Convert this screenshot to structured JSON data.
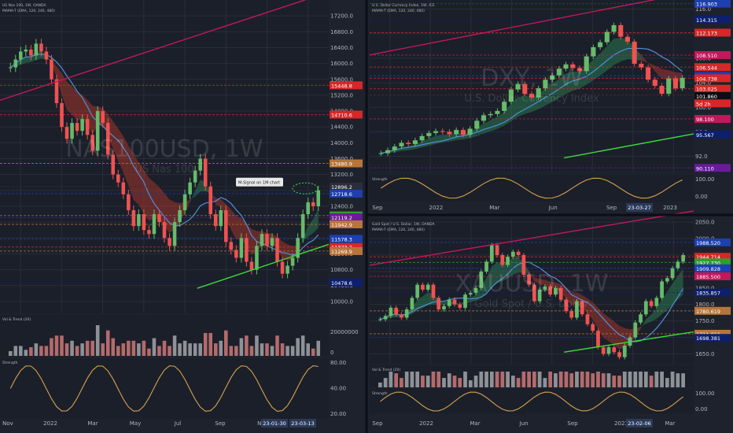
{
  "colors": {
    "background": "#1e222d",
    "candle_up": "#66bb6a",
    "candle_down": "#ef5350",
    "sma_line": "#4f8fd9",
    "ribbon_bear": "#c0392b",
    "ribbon_bull": "#2e8b57",
    "trend_red": "#c2185b",
    "trend_green": "#3ddc3d",
    "axis_text": "#b2b5be",
    "grid": "#2a2e39",
    "label_blue": "#1e3fb0",
    "label_navy": "#0d1f6e",
    "label_red": "#d62828",
    "label_pink": "#c2185b",
    "label_orange": "#b8753a",
    "label_green": "#2e9e2e",
    "label_purple": "#6a1b9a",
    "label_dark": "#0b0e14"
  },
  "chart_data": [
    {
      "id": "nas",
      "type": "candlestick",
      "info_lines": [
        "US Nas 100, 1W, OANDA",
        "MAMA-T (EMA, 120, 240, 480)"
      ],
      "watermark": "NAS100USD, 1W",
      "watermark_sub": "US Nas 100",
      "annotation": "M-Signal on 1M chart",
      "ylim": [
        9700,
        17600
      ],
      "y_ticks": [
        10000.0,
        10400.0,
        10800.0,
        11200.0,
        11600.0,
        12000.0,
        12400.0,
        12800.0,
        13200.0,
        13600.0,
        14000.0,
        14400.0,
        14800.0,
        15200.0,
        15600.0,
        16000.0,
        16400.0,
        16800.0,
        17200.0
      ],
      "x_ticks": [
        "Nov",
        "2022",
        "Mar",
        "May",
        "Jul",
        "Sep",
        "Nov",
        "2023"
      ],
      "date_boxes": [
        "23-01-30",
        "23-03-13"
      ],
      "closes": [
        15900,
        16100,
        16300,
        16350,
        16200,
        16500,
        16300,
        16100,
        15600,
        15000,
        14400,
        14100,
        14500,
        14300,
        14600,
        14200,
        13800,
        14800,
        14500,
        13700,
        13200,
        13000,
        12700,
        12300,
        11900,
        12200,
        11800,
        11700,
        12200,
        12000,
        11600,
        11400,
        12000,
        12300,
        12700,
        13000,
        13300,
        13600,
        12900,
        12200,
        11900,
        12300,
        11500,
        11300,
        11100,
        11600,
        11000,
        10800,
        11400,
        11700,
        11400,
        11600,
        11000,
        10700,
        10900,
        11100,
        11600,
        12200,
        12500,
        12400,
        12800
      ],
      "levels": [
        {
          "value": 15448.8,
          "label": "15448.8",
          "color": "#d62828"
        },
        {
          "value": 14710.6,
          "label": "14710.6",
          "color": "#d62828"
        },
        {
          "value": 13480.9,
          "label": "13480.9",
          "color": "#b8753a"
        },
        {
          "value": 12896.2,
          "label": "12896.2",
          "color": "#2a2e39"
        },
        {
          "value": 12718.6,
          "label": "12718.6",
          "color": "#1e3fb0"
        },
        {
          "value": 12169.2,
          "label": "12169.2",
          "color": "#2e9e2e"
        },
        {
          "value": 12119.2,
          "label": "12119.2",
          "color": "#6a1b9a"
        },
        {
          "value": 11942.9,
          "label": "11942.9",
          "color": "#b8753a"
        },
        {
          "value": 11578.3,
          "label": "11578.3",
          "color": "#1e3fb0"
        },
        {
          "value": 11373.2,
          "label": "11373.2",
          "color": "#d62828"
        },
        {
          "value": 11269.9,
          "label": "11269.9",
          "color": "#b8753a"
        },
        {
          "value": 10478.6,
          "label": "10478.6",
          "color": "#0d1f6e"
        }
      ],
      "volume_title": "Vol & Trend (20)",
      "volume_ticks": [
        "20000000",
        "0"
      ],
      "osc_title": "Strength",
      "osc_ticks": [
        "80.00",
        "40.00",
        "20.00"
      ]
    },
    {
      "id": "dxy",
      "type": "candlestick",
      "info_lines": [
        "U.S. Dollar Currency Index, 1W, ICE",
        "MAMA-T (EMA, 120, 240, 480)"
      ],
      "watermark": "DXY, 1W",
      "watermark_sub": "U.S. Dollar Currency Index",
      "ylim": [
        89.5,
        117.5
      ],
      "y_ticks": [
        92.0,
        96.0,
        100.0,
        104.0,
        108.0,
        112.0,
        116.0
      ],
      "x_ticks": [
        "Sep",
        "2022",
        "Mar",
        "Jun",
        "Sep",
        "2023"
      ],
      "date_boxes": [
        "23-03-27"
      ],
      "closes": [
        92.5,
        93.0,
        93.6,
        94.2,
        94.0,
        94.6,
        95.3,
        95.8,
        96.1,
        96.0,
        95.6,
        96.3,
        95.5,
        96.5,
        97.8,
        98.7,
        98.9,
        99.4,
        100.9,
        102.9,
        103.8,
        102.2,
        101.6,
        103.1,
        104.5,
        105.2,
        106.3,
        107.0,
        106.4,
        105.9,
        108.3,
        109.8,
        110.6,
        112.3,
        113.4,
        111.5,
        110.7,
        107.1,
        106.5,
        104.5,
        103.5,
        102.2,
        104.7,
        103.1,
        104.8
      ],
      "levels": [
        {
          "value": 116.903,
          "label": "116.903",
          "color": "#1e3fb0"
        },
        {
          "value": 114.315,
          "label": "114.315",
          "color": "#0d1f6e"
        },
        {
          "value": 112.173,
          "label": "112.173",
          "color": "#d62828"
        },
        {
          "value": 108.51,
          "label": "108.510",
          "color": "#c2185b"
        },
        {
          "value": 106.544,
          "label": "106.544",
          "color": "#d62828"
        },
        {
          "value": 105.13,
          "label": "105.130",
          "color": "#1e3fb0"
        },
        {
          "value": 104.738,
          "label": "104.738",
          "color": "#d62828"
        },
        {
          "value": 103.025,
          "label": "103.025",
          "color": "#d62828"
        },
        {
          "value": 101.922,
          "label": "101.922",
          "color": "#d62828"
        },
        {
          "value": 101.86,
          "label": "101.860",
          "color": "#0b0e14"
        },
        {
          "value": 98.1,
          "label": "98.100",
          "color": "#c2185b"
        },
        {
          "value": 95.567,
          "label": "95.567",
          "color": "#0d1f6e"
        },
        {
          "value": 90.11,
          "label": "90.110",
          "color": "#6a1b9a"
        }
      ],
      "countdown": "5d 2h",
      "osc_title": "Strength",
      "osc_ticks": [
        "100.00",
        "0.00"
      ]
    },
    {
      "id": "xau",
      "type": "candlestick",
      "info_lines": [
        "Gold Spot / U.S. Dollar, 1W, OANDA",
        "MAMA-T (EMA, 120, 240, 480)"
      ],
      "watermark": "XAUUSD, 1W",
      "watermark_sub": "Gold Spot / U.S. Dollar",
      "ylim": [
        1620,
        2060
      ],
      "y_ticks": [
        1650.0,
        1700.0,
        1750.0,
        1800.0,
        1850.0,
        1900.0,
        1950.0,
        2000.0,
        2050.0
      ],
      "x_ticks": [
        "Sep",
        "2022",
        "Mar",
        "Jun",
        "Sep",
        "2023",
        "Mar"
      ],
      "date_boxes": [
        "23-02-06"
      ],
      "closes": [
        1755,
        1765,
        1790,
        1770,
        1760,
        1785,
        1820,
        1860,
        1845,
        1860,
        1820,
        1785,
        1795,
        1815,
        1800,
        1790,
        1830,
        1835,
        1850,
        1900,
        1930,
        1980,
        1950,
        1920,
        1945,
        1960,
        1950,
        1890,
        1860,
        1810,
        1845,
        1855,
        1830,
        1850,
        1815,
        1780,
        1760,
        1810,
        1770,
        1740,
        1720,
        1670,
        1650,
        1670,
        1655,
        1640,
        1675,
        1700,
        1745,
        1770,
        1810,
        1795,
        1820,
        1870,
        1880,
        1910,
        1930,
        1950
      ],
      "levels": [
        {
          "value": 1988.52,
          "label": "1988.520",
          "color": "#1e3fb0"
        },
        {
          "value": 1944.714,
          "label": "1944.714",
          "color": "#d62828"
        },
        {
          "value": 1927.73,
          "label": "1927.730",
          "color": "#2e9e2e"
        },
        {
          "value": 1909.828,
          "label": "1909.828",
          "color": "#1e3fb0"
        },
        {
          "value": 1885.5,
          "label": "1885.500",
          "color": "#c2185b"
        },
        {
          "value": 1835.857,
          "label": "1835.857",
          "color": "#0d1f6e"
        },
        {
          "value": 1780.619,
          "label": "1780.619",
          "color": "#b8753a"
        },
        {
          "value": 1711.011,
          "label": "1711.011",
          "color": "#b8753a"
        },
        {
          "value": 1698.381,
          "label": "1698.381",
          "color": "#0d1f6e"
        }
      ],
      "volume_title": "Vol & Trend (20)",
      "osc_title": "Strength",
      "osc_ticks": [
        "100.00",
        "0.00"
      ]
    }
  ]
}
